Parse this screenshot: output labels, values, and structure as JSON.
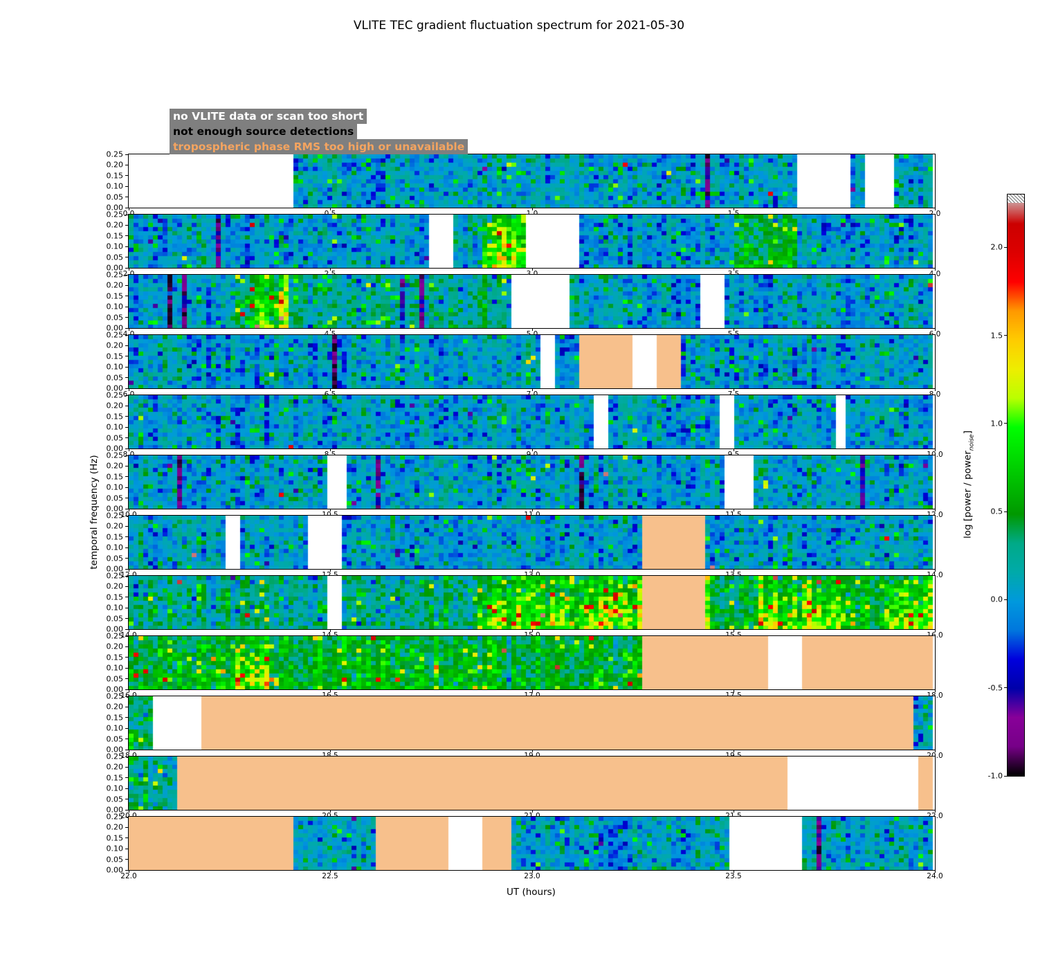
{
  "title": "VLITE TEC gradient fluctuation spectrum for 2021-05-30",
  "legend": [
    {
      "text": "no VLITE data or scan too short",
      "color": "#ffffff",
      "bg": "#7f7f7f"
    },
    {
      "text": "not enough source detections",
      "color": "#000000",
      "bg": "#7f7f7f"
    },
    {
      "text": "tropospheric phase RMS too high or unavailable",
      "color": "#f4a460",
      "bg": "#7f7f7f"
    }
  ],
  "axes": {
    "xlabel": "UT (hours)",
    "ylabel": "temporal frequency (Hz)"
  },
  "colorbar": {
    "label_prefix": "log [power / power",
    "label_sub": "noise",
    "label_suffix": "]",
    "vmin": -1.0,
    "vmax": 2.3,
    "ticks": [
      {
        "label": "2.0",
        "value": 2.0
      },
      {
        "label": "1.5",
        "value": 1.5
      },
      {
        "label": "1.0",
        "value": 1.0
      },
      {
        "label": "0.5",
        "value": 0.5
      },
      {
        "label": "0.0",
        "value": 0.0
      },
      {
        "label": "-0.5",
        "value": -0.5
      },
      {
        "label": "-1.0",
        "value": -1.0
      }
    ]
  },
  "chart_data": {
    "type": "heatmap",
    "colormap": "nipy_spectral",
    "ylim": [
      0.0,
      0.25
    ],
    "yticks": [
      "0.25",
      "0.20",
      "0.15",
      "0.10",
      "0.05",
      "0.00"
    ],
    "colors": {
      "no_data": "#ffffff",
      "tropospheric": "#f7c08c"
    },
    "kinds": {
      "blank": "no VLITE data or scan too short",
      "tropo": "tropospheric phase RMS too high or unavailable",
      "noise": "background-level spectral power (log power ~ 0)",
      "mix": "slightly enhanced spectral power",
      "active": "enhanced spectral power (log power ~ 0.5)",
      "hot": "strongly enhanced spectral power (log power 1-2)"
    },
    "panels": [
      {
        "x_range": [
          0,
          2
        ],
        "xticks": [
          "0.0",
          "0.5",
          "1.0",
          "1.5",
          "2.0"
        ],
        "segments": [
          {
            "from": 0.0,
            "to": 0.405,
            "kind": "blank"
          },
          {
            "from": 0.405,
            "to": 1.655,
            "kind": "noise"
          },
          {
            "from": 1.655,
            "to": 1.795,
            "kind": "blank"
          },
          {
            "from": 1.795,
            "to": 1.83,
            "kind": "noise"
          },
          {
            "from": 1.83,
            "to": 1.9,
            "kind": "blank"
          },
          {
            "from": 1.9,
            "to": 2.0,
            "kind": "noise"
          }
        ]
      },
      {
        "x_range": [
          2,
          4
        ],
        "xticks": [
          "2.0",
          "2.5",
          "3.0",
          "3.5",
          "4.0"
        ],
        "segments": [
          {
            "from": 2.0,
            "to": 2.75,
            "kind": "noise"
          },
          {
            "from": 2.75,
            "to": 2.81,
            "kind": "blank"
          },
          {
            "from": 2.81,
            "to": 2.875,
            "kind": "noise"
          },
          {
            "from": 2.875,
            "to": 2.99,
            "kind": "hot"
          },
          {
            "from": 2.99,
            "to": 3.115,
            "kind": "blank"
          },
          {
            "from": 3.115,
            "to": 3.5,
            "kind": "noise"
          },
          {
            "from": 3.5,
            "to": 3.66,
            "kind": "active"
          },
          {
            "from": 3.66,
            "to": 4.0,
            "kind": "noise"
          }
        ]
      },
      {
        "x_range": [
          4,
          6
        ],
        "xticks": [
          "4.0",
          "4.5",
          "5.0",
          "5.5",
          "6.0"
        ],
        "segments": [
          {
            "from": 4.0,
            "to": 4.25,
            "kind": "noise"
          },
          {
            "from": 4.25,
            "to": 4.3,
            "kind": "mix"
          },
          {
            "from": 4.3,
            "to": 4.4,
            "kind": "hot"
          },
          {
            "from": 4.4,
            "to": 4.945,
            "kind": "mix"
          },
          {
            "from": 4.945,
            "to": 5.09,
            "kind": "blank"
          },
          {
            "from": 5.09,
            "to": 5.42,
            "kind": "noise"
          },
          {
            "from": 5.42,
            "to": 5.475,
            "kind": "blank"
          },
          {
            "from": 5.475,
            "to": 6.0,
            "kind": "noise"
          }
        ]
      },
      {
        "x_range": [
          6,
          8
        ],
        "xticks": [
          "6.0",
          "6.5",
          "7.0",
          "7.5",
          "8.0"
        ],
        "segments": [
          {
            "from": 6.0,
            "to": 7.02,
            "kind": "noise"
          },
          {
            "from": 7.02,
            "to": 7.06,
            "kind": "blank"
          },
          {
            "from": 7.06,
            "to": 7.115,
            "kind": "noise"
          },
          {
            "from": 7.115,
            "to": 7.25,
            "kind": "tropo"
          },
          {
            "from": 7.25,
            "to": 7.305,
            "kind": "blank"
          },
          {
            "from": 7.305,
            "to": 7.375,
            "kind": "tropo"
          },
          {
            "from": 7.375,
            "to": 8.0,
            "kind": "noise"
          }
        ]
      },
      {
        "x_range": [
          8,
          10
        ],
        "xticks": [
          "8.0",
          "8.5",
          "9.0",
          "9.5",
          "10.0"
        ],
        "segments": [
          {
            "from": 8.0,
            "to": 9.155,
            "kind": "noise"
          },
          {
            "from": 9.155,
            "to": 9.19,
            "kind": "blank"
          },
          {
            "from": 9.19,
            "to": 9.465,
            "kind": "noise"
          },
          {
            "from": 9.465,
            "to": 9.5,
            "kind": "blank"
          },
          {
            "from": 9.5,
            "to": 9.75,
            "kind": "noise"
          },
          {
            "from": 9.75,
            "to": 9.78,
            "kind": "blank"
          },
          {
            "from": 9.78,
            "to": 10.0,
            "kind": "noise"
          }
        ]
      },
      {
        "x_range": [
          10,
          12
        ],
        "xticks": [
          "10.0",
          "10.5",
          "11.0",
          "11.5",
          "12.0"
        ],
        "segments": [
          {
            "from": 10.0,
            "to": 10.49,
            "kind": "noise"
          },
          {
            "from": 10.49,
            "to": 10.545,
            "kind": "blank"
          },
          {
            "from": 10.545,
            "to": 11.475,
            "kind": "noise"
          },
          {
            "from": 11.475,
            "to": 11.555,
            "kind": "blank"
          },
          {
            "from": 11.555,
            "to": 12.0,
            "kind": "noise"
          }
        ]
      },
      {
        "x_range": [
          12,
          14
        ],
        "xticks": [
          "12.0",
          "12.5",
          "13.0",
          "13.5",
          "14.0"
        ],
        "segments": [
          {
            "from": 12.0,
            "to": 12.235,
            "kind": "noise"
          },
          {
            "from": 12.235,
            "to": 12.28,
            "kind": "blank"
          },
          {
            "from": 12.28,
            "to": 12.45,
            "kind": "noise"
          },
          {
            "from": 12.45,
            "to": 12.525,
            "kind": "blank"
          },
          {
            "from": 12.525,
            "to": 13.27,
            "kind": "noise"
          },
          {
            "from": 13.27,
            "to": 13.435,
            "kind": "tropo"
          },
          {
            "from": 13.435,
            "to": 14.0,
            "kind": "noise"
          }
        ]
      },
      {
        "x_range": [
          14,
          16
        ],
        "xticks": [
          "14.0",
          "14.5",
          "15.0",
          "15.5",
          "16.0"
        ],
        "segments": [
          {
            "from": 14.0,
            "to": 14.495,
            "kind": "mix"
          },
          {
            "from": 14.495,
            "to": 14.53,
            "kind": "blank"
          },
          {
            "from": 14.53,
            "to": 14.86,
            "kind": "mix"
          },
          {
            "from": 14.86,
            "to": 15.27,
            "kind": "hot"
          },
          {
            "from": 15.27,
            "to": 15.425,
            "kind": "tropo"
          },
          {
            "from": 15.425,
            "to": 15.55,
            "kind": "active"
          },
          {
            "from": 15.55,
            "to": 15.78,
            "kind": "hot"
          },
          {
            "from": 15.78,
            "to": 15.88,
            "kind": "active"
          },
          {
            "from": 15.88,
            "to": 16.0,
            "kind": "hot"
          }
        ]
      },
      {
        "x_range": [
          16,
          18
        ],
        "xticks": [
          "16.0",
          "16.5",
          "17.0",
          "17.5",
          "18.0"
        ],
        "segments": [
          {
            "from": 16.0,
            "to": 16.26,
            "kind": "active"
          },
          {
            "from": 16.26,
            "to": 16.35,
            "kind": "hot"
          },
          {
            "from": 16.35,
            "to": 17.275,
            "kind": "active"
          },
          {
            "from": 17.275,
            "to": 17.585,
            "kind": "tropo"
          },
          {
            "from": 17.585,
            "to": 17.67,
            "kind": "blank"
          },
          {
            "from": 17.67,
            "to": 18.0,
            "kind": "tropo"
          }
        ]
      },
      {
        "x_range": [
          18,
          20
        ],
        "xticks": [
          "18.0",
          "18.5",
          "19.0",
          "19.5",
          "20.0"
        ],
        "segments": [
          {
            "from": 18.0,
            "to": 18.065,
            "kind": "mix"
          },
          {
            "from": 18.065,
            "to": 18.175,
            "kind": "blank"
          },
          {
            "from": 18.175,
            "to": 19.945,
            "kind": "tropo"
          },
          {
            "from": 19.945,
            "to": 20.0,
            "kind": "noise"
          }
        ]
      },
      {
        "x_range": [
          20,
          22
        ],
        "xticks": [
          "20.0",
          "20.5",
          "21.0",
          "21.5",
          "22.0"
        ],
        "segments": [
          {
            "from": 20.0,
            "to": 20.12,
            "kind": "mix"
          },
          {
            "from": 20.12,
            "to": 21.64,
            "kind": "tropo"
          },
          {
            "from": 21.64,
            "to": 21.955,
            "kind": "blank"
          },
          {
            "from": 21.955,
            "to": 22.0,
            "kind": "tropo"
          }
        ]
      },
      {
        "x_range": [
          22,
          24
        ],
        "xticks": [
          "22.0",
          "22.5",
          "23.0",
          "23.5",
          "24.0"
        ],
        "segments": [
          {
            "from": 22.0,
            "to": 22.405,
            "kind": "tropo"
          },
          {
            "from": 22.405,
            "to": 22.615,
            "kind": "noise"
          },
          {
            "from": 22.615,
            "to": 22.79,
            "kind": "tropo"
          },
          {
            "from": 22.79,
            "to": 22.875,
            "kind": "blank"
          },
          {
            "from": 22.875,
            "to": 22.95,
            "kind": "tropo"
          },
          {
            "from": 22.95,
            "to": 23.49,
            "kind": "noise"
          },
          {
            "from": 23.49,
            "to": 23.665,
            "kind": "blank"
          },
          {
            "from": 23.665,
            "to": 24.0,
            "kind": "noise"
          }
        ]
      }
    ]
  }
}
